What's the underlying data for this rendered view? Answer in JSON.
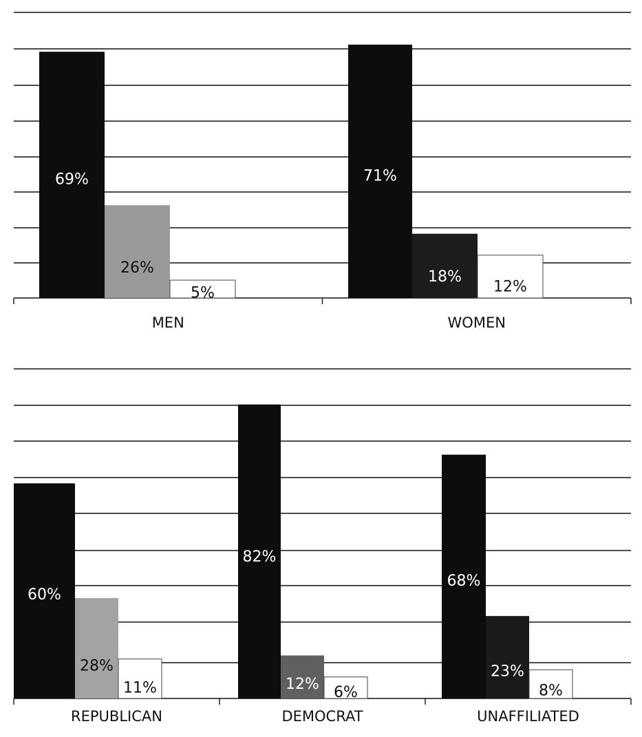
{
  "chart_data": [
    {
      "type": "bar",
      "categories": [
        "MEN",
        "WOMEN"
      ],
      "series": [
        {
          "values": [
            69,
            71
          ],
          "labels": [
            "69%",
            "71%"
          ]
        },
        {
          "values": [
            26,
            18
          ],
          "labels": [
            "26%",
            "18%"
          ]
        },
        {
          "values": [
            5,
            12
          ],
          "labels": [
            "5%",
            "12%"
          ]
        }
      ],
      "ylim": [
        0,
        80
      ],
      "grid": true
    },
    {
      "type": "bar",
      "categories": [
        "REPUBLICAN",
        "DEMOCRAT",
        "UNAFFILIATED"
      ],
      "series": [
        {
          "values": [
            60,
            82,
            68
          ],
          "labels": [
            "60%",
            "82%",
            "68%"
          ]
        },
        {
          "values": [
            28,
            12,
            23
          ],
          "labels": [
            "28%",
            "12%",
            "23%"
          ]
        },
        {
          "values": [
            11,
            6,
            8
          ],
          "labels": [
            "11%",
            "6%",
            "8%"
          ]
        }
      ],
      "ylim": [
        0,
        90
      ],
      "grid": true
    }
  ],
  "colors": {
    "series1": "#0d0d0d",
    "series2_men": "#9a9a9a",
    "series2_women": "#1c1c1c",
    "series2_republican": "#a3a3a3",
    "series2_democrat": "#606060",
    "series2_unaffiliated": "#1a1a1a",
    "series3": "#ffffff"
  }
}
